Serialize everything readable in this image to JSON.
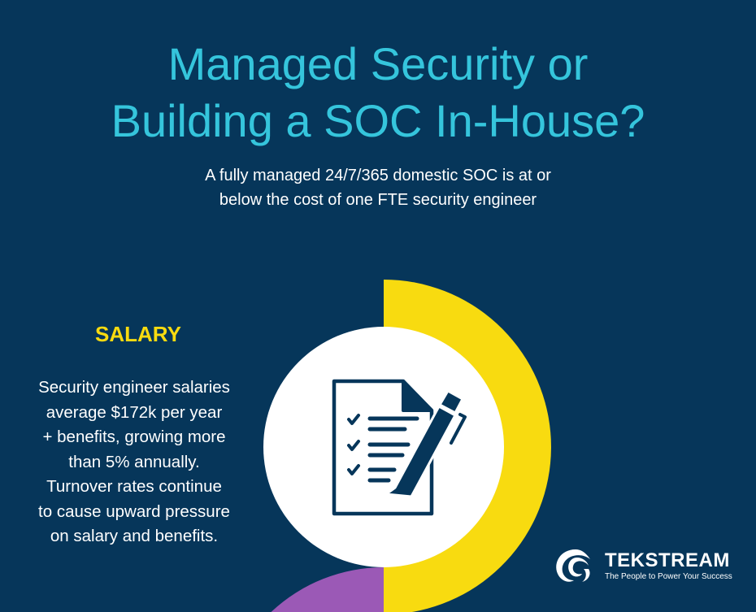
{
  "header": {
    "title_line1": "Managed Security or",
    "title_line2": "Building a SOC In-House?",
    "subtitle_line1": "A fully managed 24/7/365 domestic SOC is at or",
    "subtitle_line2": "below the cost of one FTE security engineer"
  },
  "salary": {
    "heading": "SALARY",
    "lines": [
      "Security engineer salaries",
      "average $172k per year",
      "+ benefits, growing more",
      "than 5% annually.",
      "Turnover rates continue",
      "to cause upward pressure",
      "on salary and benefits."
    ]
  },
  "icon": "checklist-document-pen-icon",
  "logo": {
    "name": "TekStream",
    "tagline": "The People to Power Your Success"
  },
  "colors": {
    "background": "#06365a",
    "title": "#35c5dc",
    "accent_yellow": "#f8db10",
    "accent_purple": "#9b59b6",
    "white": "#ffffff"
  }
}
